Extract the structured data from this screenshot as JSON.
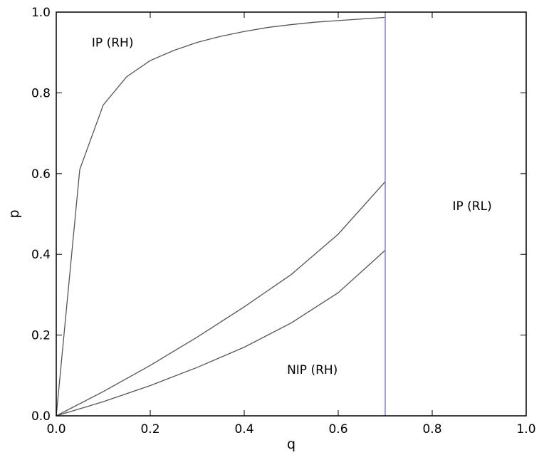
{
  "chart_data": {
    "type": "line",
    "title": "",
    "xlabel": "q",
    "ylabel": "p",
    "xlim": [
      0.0,
      1.0
    ],
    "ylim": [
      0.0,
      1.0
    ],
    "xticks": [
      "0.0",
      "0.2",
      "0.4",
      "0.6",
      "0.8",
      "1.0"
    ],
    "yticks": [
      "0.0",
      "0.2",
      "0.4",
      "0.6",
      "0.8",
      "1.0"
    ],
    "grid": false,
    "series": [
      {
        "color": "#555555",
        "x": [
          0.0,
          0.05,
          0.1,
          0.15,
          0.2,
          0.25,
          0.3,
          0.35,
          0.4,
          0.45,
          0.5,
          0.55,
          0.6,
          0.65,
          0.7
        ],
        "y": [
          0.0,
          0.61,
          0.77,
          0.84,
          0.88,
          0.905,
          0.925,
          0.94,
          0.952,
          0.962,
          0.969,
          0.975,
          0.979,
          0.983,
          0.987
        ]
      },
      {
        "color": "#555555",
        "x": [
          0.0,
          0.1,
          0.2,
          0.3,
          0.4,
          0.5,
          0.6,
          0.7
        ],
        "y": [
          0.0,
          0.06,
          0.125,
          0.195,
          0.27,
          0.35,
          0.45,
          0.58
        ]
      },
      {
        "color": "#555555",
        "x": [
          0.0,
          0.1,
          0.2,
          0.3,
          0.4,
          0.5,
          0.6,
          0.7
        ],
        "y": [
          0.0,
          0.035,
          0.075,
          0.12,
          0.17,
          0.23,
          0.305,
          0.41
        ]
      }
    ],
    "vline": {
      "x": 0.7,
      "color": "#7b7bc8"
    },
    "annotations": [
      {
        "text": "IP (RH)",
        "x": 0.12,
        "y": 0.925
      },
      {
        "text": "IP (RL)",
        "x": 0.885,
        "y": 0.52
      },
      {
        "text": "NIP (RH)",
        "x": 0.545,
        "y": 0.115
      }
    ]
  }
}
